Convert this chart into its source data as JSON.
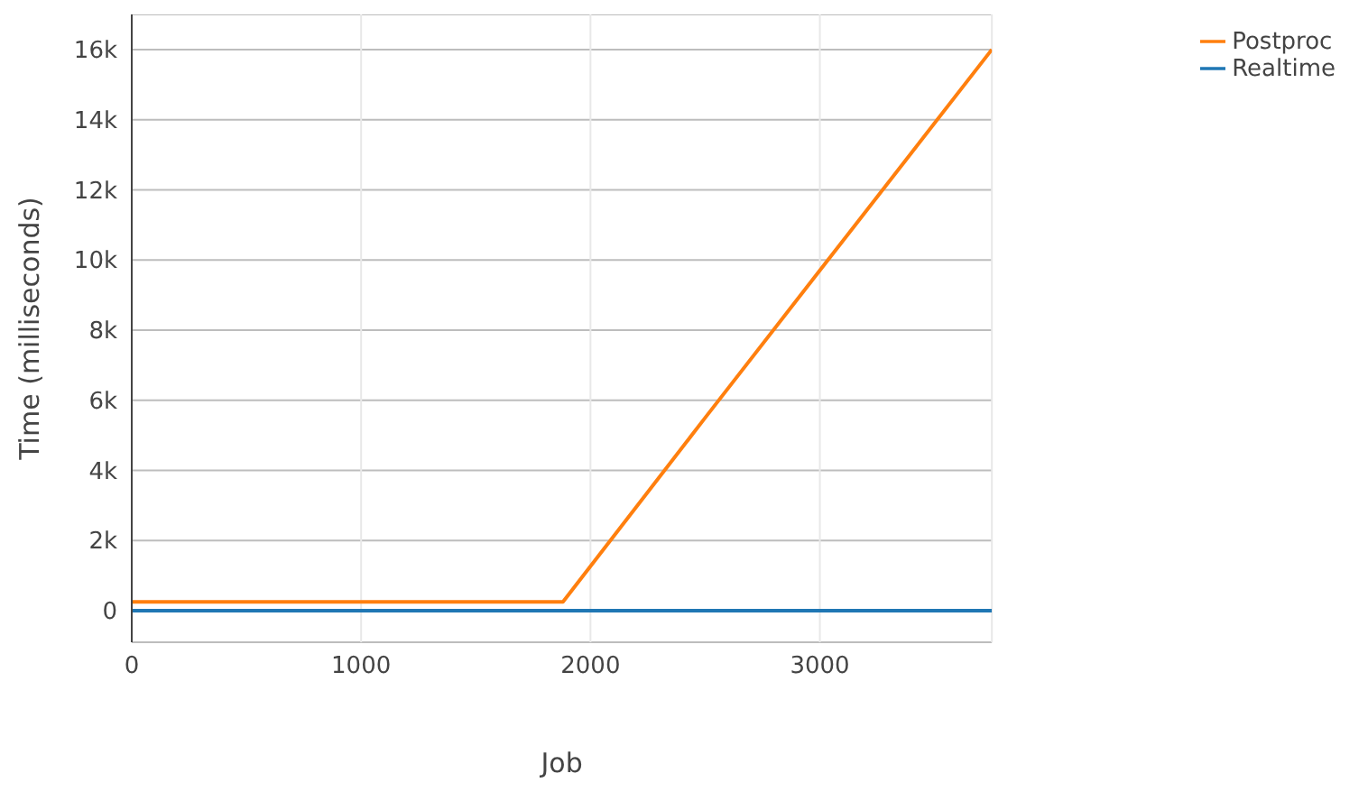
{
  "chart_data": {
    "type": "line",
    "xlabel": "Job",
    "ylabel": "Time (milliseconds)",
    "xlim": [
      0,
      3750
    ],
    "xticks": [
      0,
      1000,
      2000,
      3000
    ],
    "ylim": [
      -900,
      17000
    ],
    "yticks": [
      {
        "value": 0,
        "label": "0"
      },
      {
        "value": 2000,
        "label": "2k"
      },
      {
        "value": 4000,
        "label": "4k"
      },
      {
        "value": 6000,
        "label": "6k"
      },
      {
        "value": 8000,
        "label": "8k"
      },
      {
        "value": 10000,
        "label": "10k"
      },
      {
        "value": 12000,
        "label": "12k"
      },
      {
        "value": 14000,
        "label": "14k"
      },
      {
        "value": 16000,
        "label": "16k"
      }
    ],
    "grid": true,
    "legend": "top right",
    "marker": "none",
    "line_style": "solid",
    "series": [
      {
        "name": "Realtime",
        "color": "#1f77b4",
        "x": [
          0,
          1000,
          2000,
          3000,
          3750
        ],
        "values": [
          0,
          0,
          0,
          0,
          0
        ]
      },
      {
        "name": "Postproc",
        "color": "#ff7f0e",
        "x": [
          0,
          500,
          1000,
          1500,
          1880,
          2500,
          3000,
          3750
        ],
        "values": [
          250,
          250,
          250,
          250,
          250,
          5500,
          9700,
          16000
        ]
      }
    ]
  }
}
